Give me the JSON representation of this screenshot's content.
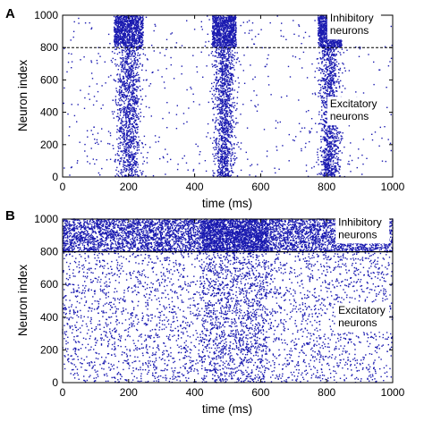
{
  "chart_data": [
    {
      "type": "scatter",
      "panel_label": "A",
      "title": "",
      "xlabel": "time (ms)",
      "ylabel": "Neuron index",
      "xlim": [
        0,
        1000
      ],
      "ylim": [
        0,
        1000
      ],
      "x_ticks": [
        0,
        200,
        400,
        600,
        800,
        1000
      ],
      "y_ticks": [
        0,
        200,
        400,
        600,
        800,
        1000
      ],
      "grid": false,
      "marker_color": "#1a1ab0",
      "boundary_line": {
        "y": 800,
        "style": "dashed"
      },
      "annotations": [
        {
          "lines": [
            "Inhibitory",
            "neurons"
          ],
          "x": 810,
          "y": 960
        },
        {
          "lines": [
            "Excitatory",
            "neurons"
          ],
          "x": 810,
          "y": 430
        }
      ],
      "populations": [
        {
          "name": "Inhibitory neurons",
          "y_range": [
            800,
            1000
          ]
        },
        {
          "name": "Excitatory neurons",
          "y_range": [
            0,
            800
          ]
        }
      ],
      "bursts": [
        {
          "t_center": 200,
          "t_width": 55
        },
        {
          "t_center": 490,
          "t_width": 45
        },
        {
          "t_center": 810,
          "t_width": 45
        }
      ],
      "background_rate": "sparse",
      "pattern": "synchronous"
    },
    {
      "type": "scatter",
      "panel_label": "B",
      "title": "",
      "xlabel": "time (ms)",
      "ylabel": "Neuron index",
      "xlim": [
        0,
        1000
      ],
      "ylim": [
        0,
        1000
      ],
      "x_ticks": [
        0,
        200,
        400,
        600,
        800,
        1000
      ],
      "y_ticks": [
        0,
        200,
        400,
        600,
        800,
        1000
      ],
      "grid": false,
      "marker_color": "#1a1ab0",
      "boundary_line": {
        "y": 800,
        "style": "solid"
      },
      "annotations": [
        {
          "lines": [
            "Inhibitory",
            "neurons"
          ],
          "x": 835,
          "y": 960
        },
        {
          "lines": [
            "Excitatory",
            "neurons"
          ],
          "x": 835,
          "y": 420
        }
      ],
      "populations": [
        {
          "name": "Inhibitory neurons",
          "y_range": [
            800,
            1000
          ]
        },
        {
          "name": "Excitatory neurons",
          "y_range": [
            0,
            800
          ]
        }
      ],
      "dense_period": [
        420,
        620
      ],
      "background_rate": "dense",
      "pattern": "asynchronous"
    }
  ]
}
